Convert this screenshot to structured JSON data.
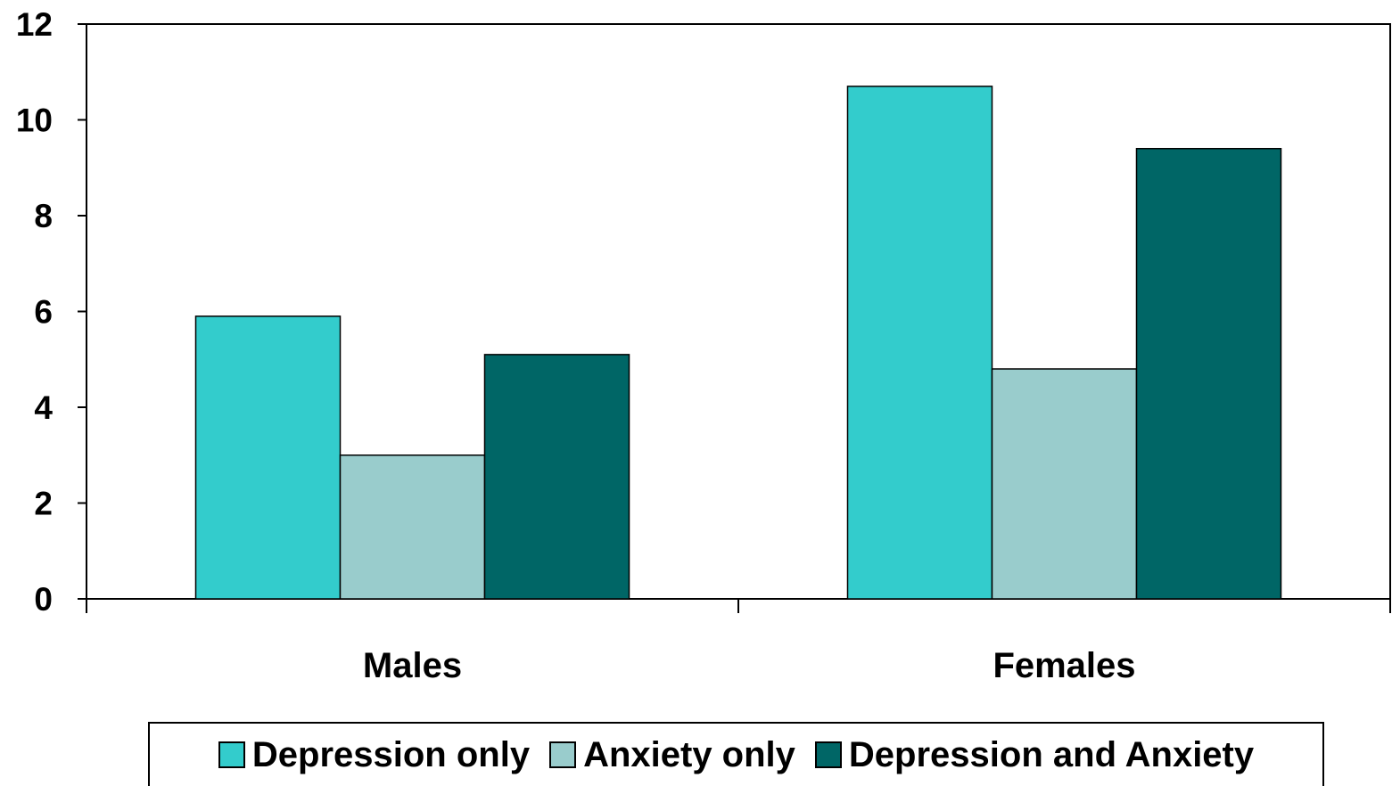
{
  "chart_data": {
    "type": "bar",
    "categories": [
      "Males",
      "Females"
    ],
    "series": [
      {
        "name": "Depression only",
        "values": [
          5.9,
          10.7
        ],
        "color": "#33CCCC"
      },
      {
        "name": "Anxiety only",
        "values": [
          3.0,
          4.8
        ],
        "color": "#99CCCC"
      },
      {
        "name": "Depression and Anxiety",
        "values": [
          5.1,
          9.4
        ],
        "color": "#006666"
      }
    ],
    "ylim": [
      0,
      12
    ],
    "yticks": [
      0,
      2,
      4,
      6,
      8,
      10,
      12
    ],
    "title": "",
    "xlabel": "",
    "ylabel": "",
    "grid": false,
    "legend_position": "bottom"
  }
}
